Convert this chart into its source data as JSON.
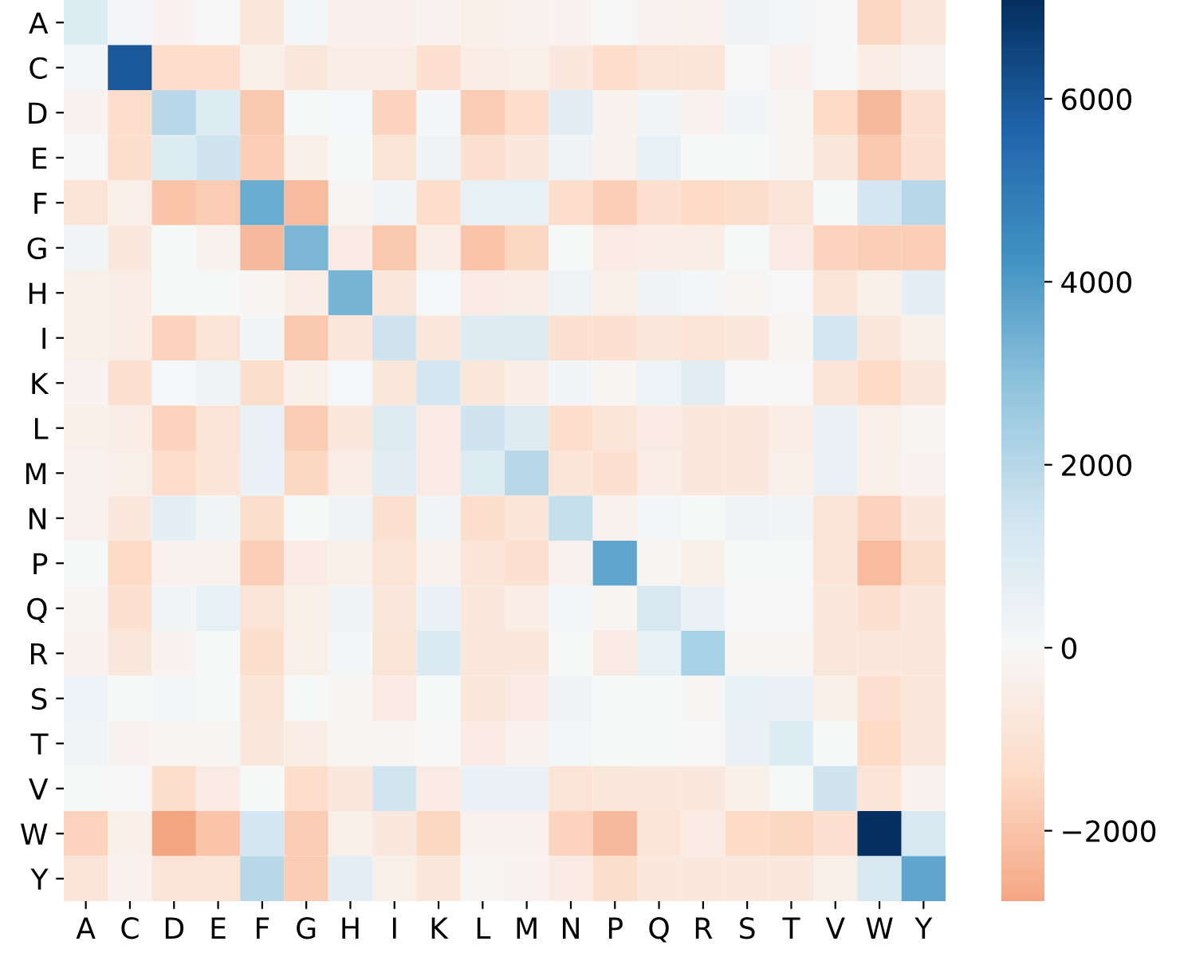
{
  "chart_data": {
    "type": "heatmap",
    "categories": [
      "A",
      "C",
      "D",
      "E",
      "F",
      "G",
      "H",
      "I",
      "K",
      "L",
      "M",
      "N",
      "P",
      "Q",
      "R",
      "S",
      "T",
      "V",
      "W",
      "Y"
    ],
    "y_categories": [
      "A",
      "C",
      "D",
      "E",
      "F",
      "G",
      "H",
      "I",
      "K",
      "L",
      "M",
      "N",
      "P",
      "Q",
      "R",
      "S",
      "T",
      "V",
      "W",
      "Y"
    ],
    "cells": [
      [
        1000,
        150,
        -200,
        0,
        -800,
        150,
        -350,
        -350,
        -200,
        -400,
        -300,
        -200,
        0,
        -200,
        -300,
        300,
        150,
        0,
        -1500,
        -800
      ],
      [
        150,
        6000,
        -1300,
        -1300,
        -400,
        -800,
        -500,
        -500,
        -1100,
        -500,
        -400,
        -700,
        -1300,
        -1000,
        -900,
        0,
        -300,
        0,
        -500,
        -250
      ],
      [
        -200,
        -1300,
        2000,
        1000,
        -1900,
        50,
        100,
        -1600,
        150,
        -1800,
        -1300,
        800,
        -300,
        200,
        -300,
        200,
        -100,
        -1400,
        -2300,
        -1100
      ],
      [
        0,
        -1200,
        1000,
        1500,
        -1700,
        -400,
        50,
        -1000,
        300,
        -1100,
        -700,
        300,
        -300,
        600,
        50,
        50,
        -50,
        -800,
        -1900,
        -1100
      ],
      [
        -1000,
        -400,
        -2000,
        -1800,
        3500,
        -2200,
        -100,
        250,
        -1300,
        600,
        600,
        -1300,
        -1700,
        -1100,
        -1400,
        -1200,
        -900,
        50,
        1300,
        2000
      ],
      [
        200,
        -700,
        50,
        -300,
        -2300,
        3200,
        -600,
        -1900,
        -500,
        -2000,
        -1500,
        50,
        -600,
        -500,
        -500,
        50,
        -600,
        -1600,
        -1700,
        -1700
      ],
      [
        -400,
        -500,
        50,
        50,
        -100,
        -500,
        3300,
        -800,
        100,
        -600,
        -500,
        300,
        -400,
        300,
        150,
        -100,
        0,
        -900,
        -400,
        700
      ],
      [
        -400,
        -500,
        -1600,
        -1000,
        200,
        -1900,
        -800,
        1500,
        -800,
        900,
        900,
        -1100,
        -1100,
        -800,
        -1000,
        -700,
        -150,
        1300,
        -800,
        -400
      ],
      [
        -200,
        -1100,
        100,
        300,
        -1200,
        -400,
        100,
        -800,
        1300,
        -800,
        -500,
        200,
        -150,
        400,
        800,
        0,
        0,
        -900,
        -1400,
        -800
      ],
      [
        -400,
        -500,
        -1600,
        -1000,
        500,
        -1800,
        -700,
        900,
        -600,
        1500,
        900,
        -1300,
        -900,
        -600,
        -700,
        -700,
        -500,
        500,
        -400,
        -150
      ],
      [
        -300,
        -400,
        -1300,
        -900,
        500,
        -1500,
        -500,
        800,
        -600,
        1000,
        2000,
        -900,
        -1100,
        -500,
        -700,
        -700,
        -400,
        500,
        -400,
        -200
      ],
      [
        -300,
        -700,
        700,
        200,
        -1200,
        50,
        300,
        -1100,
        200,
        -1200,
        -900,
        1700,
        -300,
        150,
        50,
        300,
        200,
        -1000,
        -1600,
        -700
      ],
      [
        50,
        -1400,
        -300,
        -300,
        -1700,
        -600,
        -400,
        -1000,
        -300,
        -900,
        -1100,
        -300,
        3700,
        -150,
        -400,
        50,
        50,
        -900,
        -2200,
        -1200
      ],
      [
        -150,
        -1100,
        200,
        600,
        -1000,
        -400,
        300,
        -800,
        500,
        -700,
        -500,
        150,
        -150,
        1200,
        500,
        0,
        0,
        -800,
        -1100,
        -700
      ],
      [
        -300,
        -800,
        -200,
        50,
        -1200,
        -400,
        150,
        -1000,
        1100,
        -800,
        -700,
        50,
        -600,
        600,
        2300,
        -100,
        -100,
        -800,
        -700,
        -800
      ],
      [
        400,
        50,
        150,
        50,
        -900,
        50,
        -100,
        -600,
        50,
        -800,
        -600,
        300,
        50,
        50,
        -50,
        600,
        500,
        -400,
        -1100,
        -800
      ],
      [
        250,
        -200,
        -50,
        -100,
        -700,
        -500,
        -150,
        -150,
        0,
        -600,
        -300,
        150,
        50,
        50,
        0,
        500,
        1000,
        50,
        -1400,
        -800
      ],
      [
        50,
        0,
        -1200,
        -600,
        50,
        -1300,
        -700,
        1400,
        -600,
        500,
        500,
        -1000,
        -800,
        -700,
        -700,
        -400,
        50,
        1500,
        -1000,
        -300
      ],
      [
        -1600,
        -400,
        -2770,
        -2000,
        1300,
        -1800,
        -400,
        -700,
        -1500,
        -300,
        -300,
        -1600,
        -2300,
        -1000,
        -600,
        -1400,
        -1500,
        -1100,
        7080,
        1200
      ],
      [
        -900,
        -300,
        -1000,
        -1000,
        2000,
        -1800,
        700,
        -400,
        -800,
        -100,
        -200,
        -600,
        -1200,
        -700,
        -700,
        -700,
        -700,
        -400,
        1200,
        3700
      ]
    ],
    "clim": [
      -2770,
      7080
    ],
    "cticks": [
      -2000,
      0,
      2000,
      4000,
      6000
    ]
  }
}
